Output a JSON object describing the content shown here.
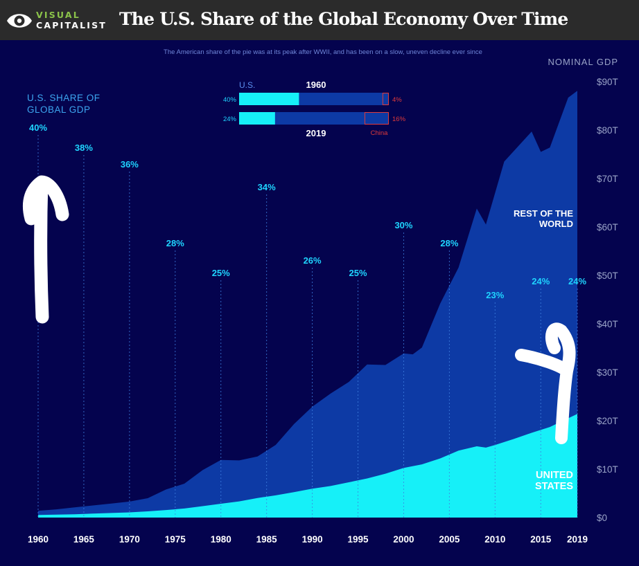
{
  "header": {
    "logo_top": "VISUAL",
    "logo_bottom": "CAPITALIST",
    "title": "The U.S. Share of the Global Economy Over Time"
  },
  "subtitle": "The American share of the pie was at its peak after WWII, and has been on a slow, uneven decline ever since",
  "colors": {
    "background": "#04034e",
    "rest_of_world": "#0d3aa5",
    "united_states": "#16f0f8",
    "share_label": "#1fd4ff",
    "axis_text": "#9aa4c8",
    "china": "#e03a3a",
    "topbar": "#2b2b2b"
  },
  "share_heading": [
    "U.S. SHARE OF",
    "GLOBAL GDP"
  ],
  "axis_title": "NOMINAL GDP",
  "area_labels": {
    "rest_of_world": [
      "REST OF THE",
      "WORLD"
    ],
    "united_states": [
      "UNITED",
      "STATES"
    ]
  },
  "comparison": {
    "us_label": "U.S.",
    "rows": [
      {
        "year": "1960",
        "us_share": 40,
        "us_label": "40%",
        "china_share": 4,
        "china_label": "4%"
      },
      {
        "year": "2019",
        "us_share": 24,
        "us_label": "24%",
        "china_share": 16,
        "china_label": "16%"
      }
    ],
    "china_name": "China"
  },
  "chart_data": {
    "type": "area",
    "title": "The U.S. Share of the Global Economy Over Time",
    "ylabel": "NOMINAL GDP",
    "ylim": [
      0,
      90
    ],
    "y_unit": "trillion USD",
    "yticks": [
      "$0",
      "$10T",
      "$20T",
      "$30T",
      "$40T",
      "$50T",
      "$60T",
      "$70T",
      "$80T",
      "$90T"
    ],
    "xticks": [
      "1960",
      "1965",
      "1970",
      "1975",
      "1980",
      "1985",
      "1990",
      "1995",
      "2000",
      "2005",
      "2010",
      "2015",
      "2019"
    ],
    "series": [
      {
        "name": "REST OF THE WORLD",
        "x": [
          1960,
          1962,
          1964,
          1966,
          1968,
          1970,
          1972,
          1974,
          1976,
          1978,
          1980,
          1982,
          1984,
          1986,
          1988,
          1990,
          1992,
          1994,
          1996,
          1998,
          2000,
          2001,
          2002,
          2004,
          2006,
          2008,
          2009,
          2011,
          2014,
          2015,
          2016,
          2018,
          2019
        ],
        "total": [
          1.4,
          1.7,
          2.1,
          2.5,
          2.9,
          3.3,
          4.0,
          5.8,
          7.0,
          9.8,
          11.9,
          11.8,
          12.6,
          15.0,
          19.3,
          22.9,
          25.6,
          28.0,
          31.6,
          31.5,
          33.9,
          33.7,
          35.1,
          44.2,
          51.6,
          63.8,
          60.5,
          73.5,
          79.7,
          75.5,
          76.4,
          86.7,
          88.1
        ]
      },
      {
        "name": "UNITED STATES",
        "x": [
          1960,
          1962,
          1964,
          1966,
          1968,
          1970,
          1972,
          1974,
          1976,
          1978,
          1980,
          1982,
          1984,
          1986,
          1988,
          1990,
          1992,
          1994,
          1996,
          1998,
          2000,
          2002,
          2004,
          2006,
          2008,
          2009,
          2010,
          2012,
          2014,
          2016,
          2018,
          2019
        ],
        "values": [
          0.54,
          0.6,
          0.69,
          0.82,
          0.94,
          1.07,
          1.28,
          1.55,
          1.87,
          2.35,
          2.86,
          3.34,
          4.04,
          4.58,
          5.24,
          5.96,
          6.52,
          7.29,
          8.07,
          9.06,
          10.25,
          10.98,
          12.21,
          13.82,
          14.71,
          14.45,
          14.99,
          16.2,
          17.5,
          18.7,
          20.5,
          21.4
        ]
      }
    ],
    "share_labels": [
      {
        "year": 1960,
        "label": "40%"
      },
      {
        "year": 1965,
        "label": "38%"
      },
      {
        "year": 1970,
        "label": "36%"
      },
      {
        "year": 1975,
        "label": "28%"
      },
      {
        "year": 1980,
        "label": "25%"
      },
      {
        "year": 1985,
        "label": "34%"
      },
      {
        "year": 1990,
        "label": "26%"
      },
      {
        "year": 1995,
        "label": "25%"
      },
      {
        "year": 2000,
        "label": "30%"
      },
      {
        "year": 2005,
        "label": "28%"
      },
      {
        "year": 2010,
        "label": "23%"
      },
      {
        "year": 2015,
        "label": "24%"
      },
      {
        "year": 2019,
        "label": "24%"
      }
    ],
    "grid": false
  }
}
